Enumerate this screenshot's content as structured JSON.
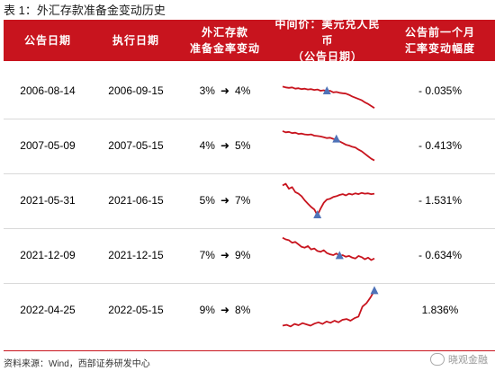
{
  "title": "表 1：外汇存款准备金变动历史",
  "header": {
    "announce_date": "公告日期",
    "effective_date": "执行日期",
    "rrr_change_line1": "外汇存款",
    "rrr_change_line2": "准备金率变动",
    "usdcny_line1": "中间价：美元兑人民币",
    "usdcny_line2": "（公告日期）",
    "fx_change_line1": "公告前一个月",
    "fx_change_line2": "汇率变动幅度"
  },
  "rows": [
    {
      "announce": "2006-08-14",
      "effective": "2006-09-15",
      "from_rate": "3%",
      "arrow": "➜",
      "to_rate": "4%",
      "fx_change": "- 0.035%",
      "spark": [
        60,
        58,
        57,
        58,
        55,
        56,
        54,
        55,
        53,
        54,
        52,
        53,
        50,
        51,
        49,
        50,
        46,
        47,
        45,
        44,
        43,
        40,
        36,
        33,
        30,
        27,
        22,
        18,
        13,
        8
      ],
      "marker_index": 14
    },
    {
      "announce": "2007-05-09",
      "effective": "2007-05-15",
      "from_rate": "4%",
      "arrow": "➜",
      "to_rate": "5%",
      "fx_change": "- 0.413%",
      "spark": [
        85,
        82,
        83,
        80,
        81,
        78,
        79,
        77,
        76,
        77,
        74,
        73,
        72,
        70,
        68,
        69,
        66,
        65,
        60,
        56,
        52,
        50,
        47,
        45,
        40,
        36,
        30,
        24,
        18,
        14
      ],
      "marker_index": 17
    },
    {
      "announce": "2021-05-31",
      "effective": "2021-06-15",
      "from_rate": "5%",
      "arrow": "➜",
      "to_rate": "7%",
      "fx_change": "- 1.531%",
      "spark": [
        86,
        90,
        78,
        82,
        70,
        66,
        60,
        50,
        42,
        34,
        28,
        14,
        30,
        44,
        52,
        54,
        58,
        60,
        63,
        65,
        62,
        66,
        64,
        67,
        65,
        68,
        66,
        67,
        65,
        66
      ],
      "marker_index": 11
    },
    {
      "announce": "2021-12-09",
      "effective": "2021-12-15",
      "from_rate": "7%",
      "arrow": "➜",
      "to_rate": "9%",
      "fx_change": "- 0.634%",
      "spark": [
        92,
        88,
        86,
        80,
        82,
        76,
        70,
        68,
        72,
        64,
        66,
        60,
        58,
        62,
        55,
        52,
        50,
        54,
        48,
        50,
        46,
        48,
        44,
        42,
        48,
        45,
        40,
        44,
        38,
        42
      ],
      "marker_index": 18
    },
    {
      "announce": "2022-04-25",
      "effective": "2022-05-15",
      "from_rate": "9%",
      "arrow": "➜",
      "to_rate": "8%",
      "fx_change": "1.836%",
      "spark": [
        12,
        14,
        10,
        16,
        13,
        18,
        15,
        12,
        17,
        20,
        16,
        22,
        19,
        24,
        20,
        26,
        28,
        24,
        30,
        34,
        58,
        66,
        80,
        96
      ],
      "marker_index": 23
    }
  ],
  "source": "资料来源：Wind，西部证券研发中心",
  "logo": {
    "text": "晓观金融",
    "icon": "wechat-icon"
  },
  "colors": {
    "accent": "#c8141e",
    "marker": "#4f73b8"
  }
}
